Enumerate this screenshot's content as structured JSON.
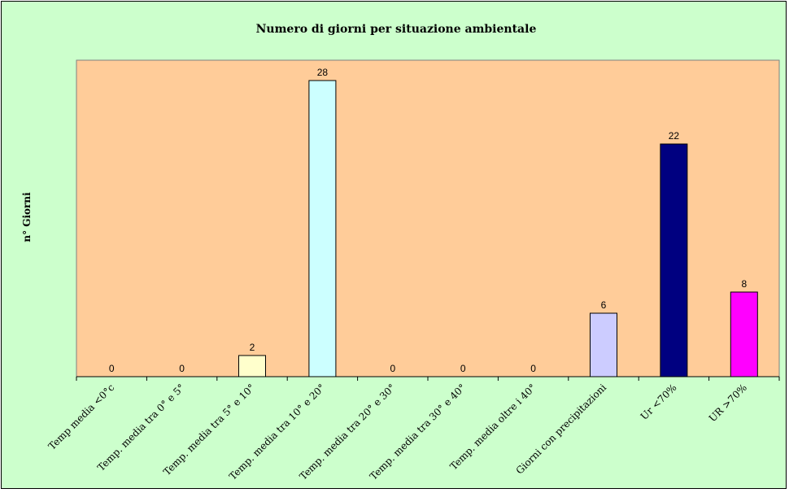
{
  "chart_data": {
    "type": "bar",
    "title": "Numero di giorni per situazione ambientale",
    "ylabel": "n° Giorni",
    "xlabel": "",
    "categories": [
      "Temp media <0°c",
      "Temp. media tra 0° e 5°",
      "Temp. media tra 5° e 10°",
      "Temp. media tra 10° e 20°",
      "Temp. media tra 20° e 30°",
      "Temp. media tra 30° e 40°",
      "Temp. media oltre i 40°",
      "Giorni con precipitazioni",
      "Ur <70%",
      "UR >70%"
    ],
    "values": [
      0,
      0,
      2,
      28,
      0,
      0,
      0,
      6,
      22,
      8
    ],
    "bar_colors": [
      "#ffffcc",
      "#ffffcc",
      "#ffffcc",
      "#ccffff",
      "#ffffcc",
      "#ffffcc",
      "#ffffcc",
      "#ccccff",
      "#000080",
      "#ff00ff"
    ],
    "data_labels": true,
    "ylim": [
      0,
      30
    ],
    "grid": false,
    "legend": "none",
    "colors": {
      "page_background": "#ccffcc",
      "plot_background": "#ffcc99"
    }
  }
}
